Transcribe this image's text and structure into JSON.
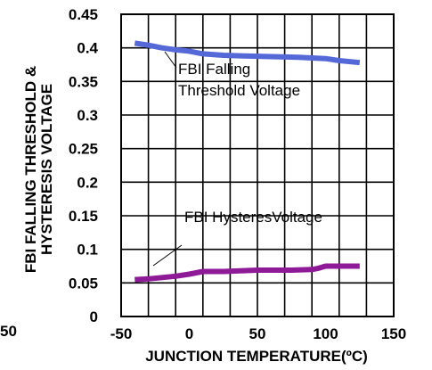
{
  "chart_data": {
    "type": "line",
    "xlabel": "JUNCTION TEMPERATURE(ºC)",
    "ylabel": [
      "FBI FALLING THRESHOLD &",
      "HYSTERESIS VOLTAGE"
    ],
    "xlim": [
      -50,
      150
    ],
    "ylim": [
      0,
      0.45
    ],
    "x_ticks": [
      "-50",
      "0",
      "50",
      "100",
      "150"
    ],
    "y_ticks": [
      "0",
      "0.05",
      "0.1",
      "0.15",
      "0.2",
      "0.25",
      "0.3",
      "0.35",
      "0.4",
      "0.45"
    ],
    "stray_label": "50",
    "grid": true,
    "series": [
      {
        "name": "FBI Falling Threshold Voltage",
        "color": "#5568d8",
        "x": [
          -40,
          -30,
          -20,
          -10,
          0,
          10,
          25,
          40,
          60,
          80,
          100,
          110,
          125
        ],
        "y": [
          0.407,
          0.404,
          0.4,
          0.397,
          0.395,
          0.391,
          0.389,
          0.388,
          0.387,
          0.386,
          0.384,
          0.381,
          0.378
        ]
      },
      {
        "name": "FBI HysteresVoltage",
        "color": "#8e1a98",
        "x": [
          -40,
          -30,
          -20,
          -10,
          0,
          5,
          10,
          25,
          50,
          75,
          90,
          95,
          100,
          110,
          125
        ],
        "y": [
          0.055,
          0.056,
          0.058,
          0.06,
          0.063,
          0.065,
          0.067,
          0.067,
          0.069,
          0.069,
          0.07,
          0.072,
          0.075,
          0.075,
          0.075
        ]
      }
    ],
    "annotations": [
      {
        "lines": [
          "FBI Falling",
          "Threshold Voltage"
        ],
        "series": 0
      },
      {
        "lines": [
          "FBI HysteresVoltage"
        ],
        "series": 1
      }
    ]
  }
}
